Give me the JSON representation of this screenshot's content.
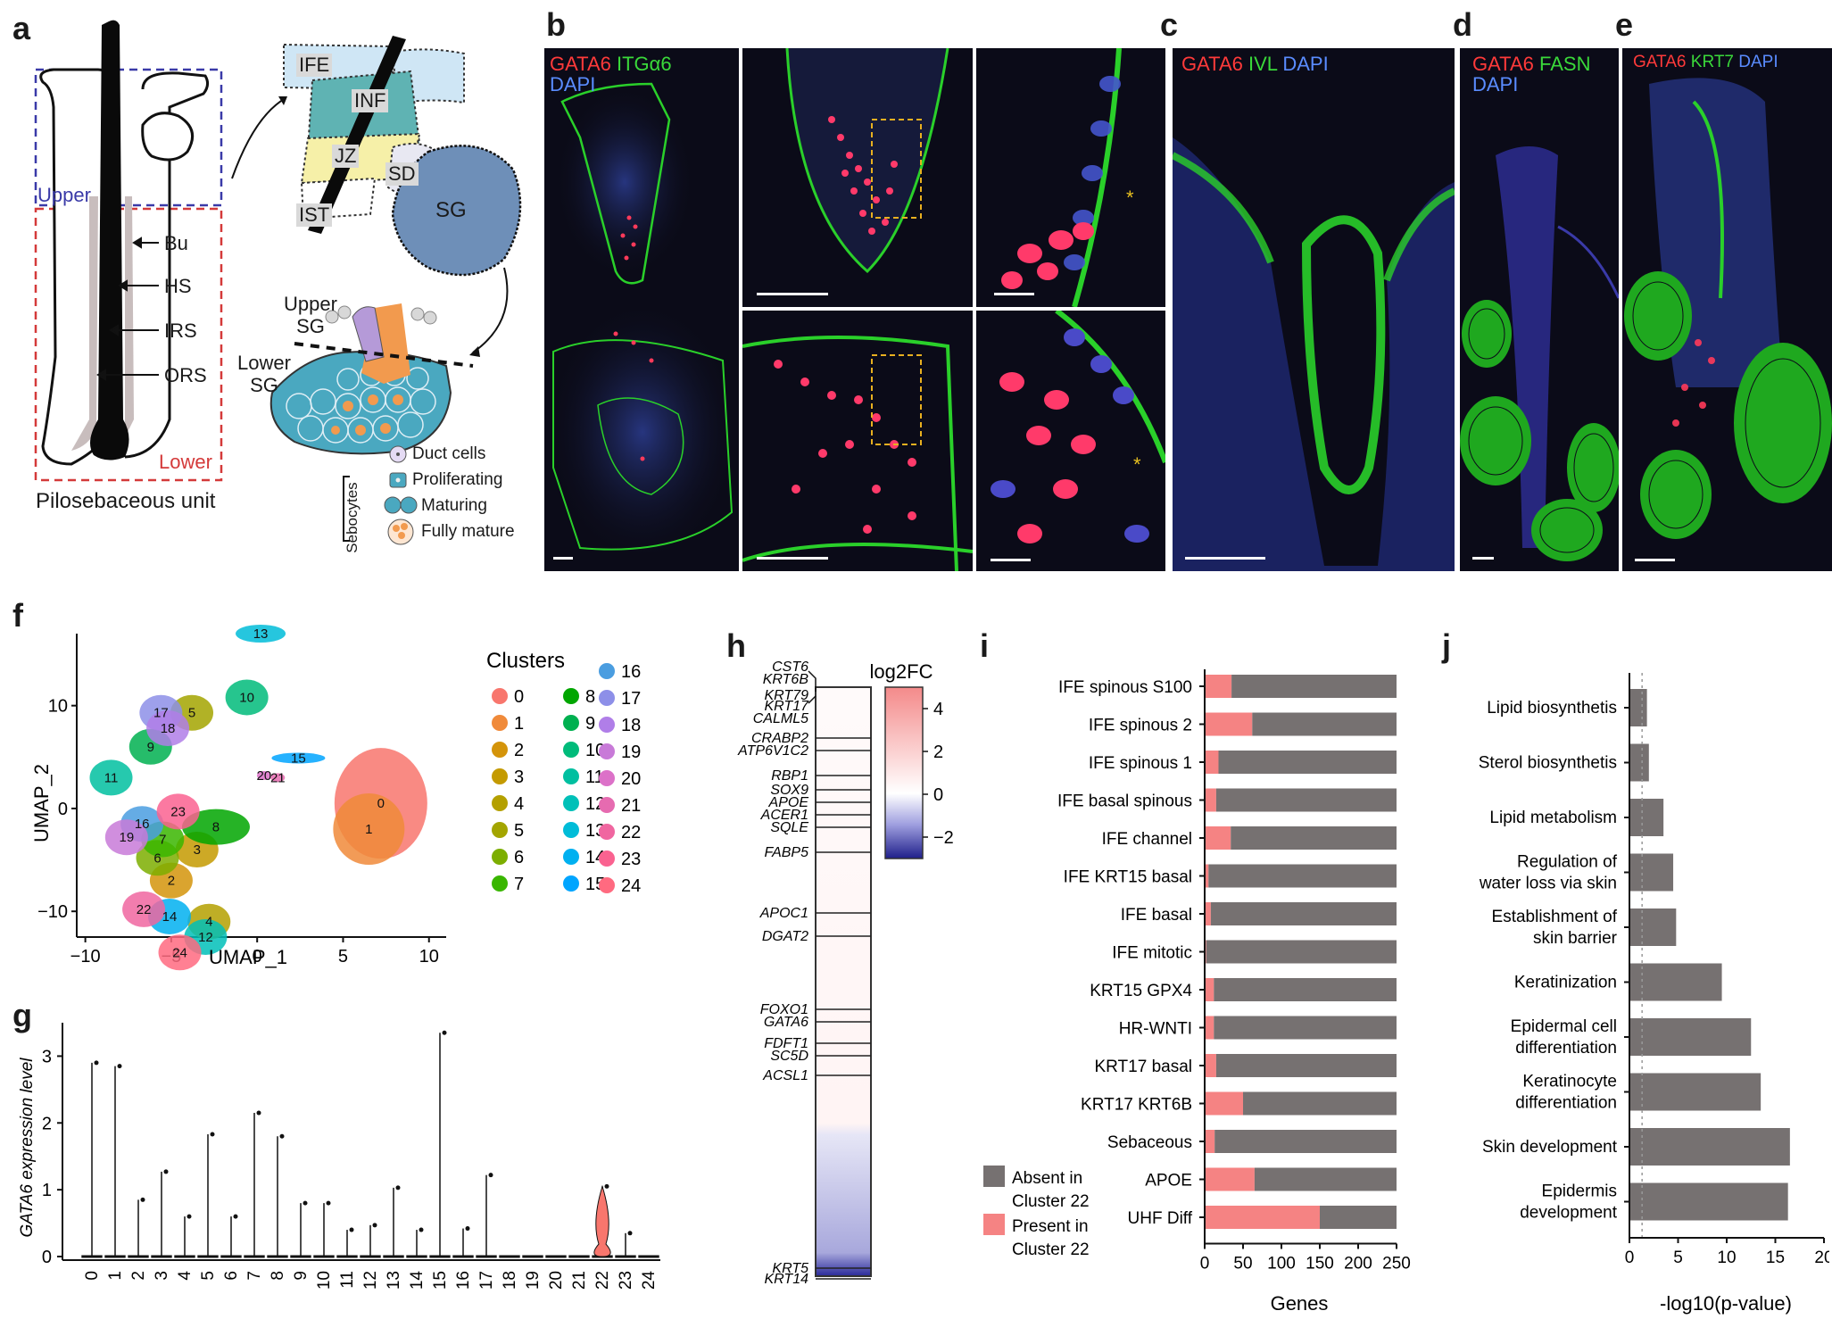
{
  "panel_labels": {
    "a": "a",
    "b": "b",
    "c": "c",
    "d": "d",
    "e": "e",
    "f": "f",
    "g": "g",
    "h": "h",
    "i": "i",
    "j": "j"
  },
  "panel_a": {
    "caption": "Pilosebaceous unit",
    "upper": "Upper",
    "lower": "Lower",
    "hf_labels": [
      "Bu",
      "HS",
      "IRS",
      "ORS"
    ],
    "zones": [
      "IFE",
      "INF",
      "JZ",
      "SD",
      "IST",
      "SG"
    ],
    "sg_upper": "Upper SG",
    "sg_lower": "Lower SG",
    "legend_title": "Sebocytes",
    "legend_items": [
      "Duct cells",
      "Proliferating",
      "Maturing",
      "Fully mature"
    ],
    "colors": {
      "ife": "#cfe6f5",
      "inf": "#5fb3b3",
      "jz": "#f6f0a8",
      "sg": "#6e8fb8",
      "upper_box": "#3a3aa8",
      "lower_box": "#d43a3a",
      "orange": "#f29a4e",
      "purple": "#b59ad8",
      "teal": "#4aa8c0"
    }
  },
  "panel_b": {
    "channels": [
      {
        "text": "GATA6",
        "color": "#ff3a3a"
      },
      {
        "text": "ITGα6",
        "color": "#3ad93a"
      },
      {
        "text": "DAPI",
        "color": "#5a8cff"
      }
    ]
  },
  "panel_c": {
    "channels": [
      {
        "text": "GATA6",
        "color": "#ff3a3a"
      },
      {
        "text": "IVL",
        "color": "#3ad93a"
      },
      {
        "text": "DAPI",
        "color": "#5a8cff"
      }
    ]
  },
  "panel_d": {
    "channels": [
      {
        "text": "GATA6",
        "color": "#ff3a3a"
      },
      {
        "text": "FASN",
        "color": "#3ad93a"
      },
      {
        "text": "DAPI",
        "color": "#5a8cff"
      }
    ]
  },
  "panel_e": {
    "channels": [
      {
        "text": "GATA6",
        "color": "#ff3a3a"
      },
      {
        "text": "KRT7",
        "color": "#3ad93a"
      },
      {
        "text": "DAPI",
        "color": "#5a8cff"
      }
    ]
  },
  "chart_data": [
    {
      "panel": "f",
      "type": "scatter",
      "xlabel": "UMAP_1",
      "ylabel": "UMAP_2",
      "xlim": [
        -10.5,
        11
      ],
      "ylim": [
        -12.5,
        17
      ],
      "xticks": [
        -10,
        -5,
        0,
        5,
        10
      ],
      "yticks": [
        -10,
        0,
        10
      ],
      "legend_title": "Clusters",
      "clusters": [
        {
          "id": "0",
          "color": "#f8766d",
          "center": [
            7.2,
            0.5
          ]
        },
        {
          "id": "1",
          "color": "#f08a3a",
          "center": [
            6.5,
            -2
          ]
        },
        {
          "id": "2",
          "color": "#d4940a",
          "center": [
            -5,
            -7
          ]
        },
        {
          "id": "3",
          "color": "#c49a00",
          "center": [
            -3.5,
            -4
          ]
        },
        {
          "id": "4",
          "color": "#b4a000",
          "center": [
            -2.8,
            -11
          ]
        },
        {
          "id": "5",
          "color": "#a3a500",
          "center": [
            -3.8,
            9.3
          ]
        },
        {
          "id": "6",
          "color": "#7cae00",
          "center": [
            -5.8,
            -4.8
          ]
        },
        {
          "id": "7",
          "color": "#39b600",
          "center": [
            -5.5,
            -3
          ]
        },
        {
          "id": "8",
          "color": "#00a600",
          "center": [
            -2.4,
            -1.8
          ]
        },
        {
          "id": "9",
          "color": "#00b050",
          "center": [
            -6.2,
            6
          ]
        },
        {
          "id": "10",
          "color": "#00bb7a",
          "center": [
            -0.6,
            10.8
          ]
        },
        {
          "id": "11",
          "color": "#00bfa0",
          "center": [
            -8.5,
            3
          ]
        },
        {
          "id": "12",
          "color": "#00c0b8",
          "center": [
            -3,
            -12.5
          ]
        },
        {
          "id": "13",
          "color": "#00bcd8",
          "center": [
            0.2,
            17
          ]
        },
        {
          "id": "14",
          "color": "#00b0f0",
          "center": [
            -5.1,
            -10.5
          ]
        },
        {
          "id": "15",
          "color": "#00a5ff",
          "center": [
            2.4,
            4.9
          ]
        },
        {
          "id": "16",
          "color": "#4a9de0",
          "center": [
            -6.7,
            -1.5
          ]
        },
        {
          "id": "17",
          "color": "#8d8fe8",
          "center": [
            -5.6,
            9.3
          ]
        },
        {
          "id": "18",
          "color": "#b07ee8",
          "center": [
            -5.2,
            7.8
          ]
        },
        {
          "id": "19",
          "color": "#c87ad8",
          "center": [
            -7.6,
            -2.8
          ]
        },
        {
          "id": "20",
          "color": "#dc71c8",
          "center": [
            0.4,
            3.2
          ]
        },
        {
          "id": "21",
          "color": "#e66bb0",
          "center": [
            1.2,
            3
          ]
        },
        {
          "id": "22",
          "color": "#f066a0",
          "center": [
            -6.6,
            -9.8
          ]
        },
        {
          "id": "23",
          "color": "#fa6290",
          "center": [
            -4.6,
            -0.3
          ]
        },
        {
          "id": "24",
          "color": "#ff6a80",
          "center": [
            -4.5,
            -14
          ]
        }
      ]
    },
    {
      "panel": "g",
      "type": "violin",
      "ylabel": "GATA6 expression level",
      "ylim": [
        0,
        3.5
      ],
      "yticks": [
        0,
        1,
        2,
        3
      ],
      "categories": [
        "0",
        "1",
        "2",
        "3",
        "4",
        "5",
        "6",
        "7",
        "8",
        "9",
        "10",
        "11",
        "12",
        "13",
        "14",
        "15",
        "16",
        "17",
        "18",
        "19",
        "20",
        "21",
        "22",
        "23",
        "24"
      ],
      "max_values": [
        2.9,
        2.85,
        0.85,
        1.27,
        0.6,
        1.83,
        0.6,
        2.15,
        1.8,
        0.8,
        0.8,
        0.4,
        0.47,
        1.03,
        0.4,
        3.35,
        0.42,
        1.22,
        0,
        0,
        0,
        0,
        1.05,
        0.35,
        0
      ],
      "highlight": {
        "category": "22",
        "color": "#f8766d"
      }
    },
    {
      "panel": "h",
      "type": "heatmap",
      "colorbar_title": "log2FC",
      "colorbar_ticks": [
        4,
        2,
        0,
        -2
      ],
      "colorbar_range": [
        -3,
        5
      ],
      "genes": [
        "CST6",
        "KRT6B",
        "KRT79",
        "KRT17",
        "CALML5",
        "CRABP2",
        "ATP6V1C2",
        "RBP1",
        "SOX9",
        "APOE",
        "ACER1",
        "SQLE",
        "FABP5",
        "APOC1",
        "DGAT2",
        "FOXO1",
        "GATA6",
        "FDFT1",
        "SC5D",
        "ACSL1",
        "KRT5",
        "KRT14"
      ]
    },
    {
      "panel": "i",
      "type": "bar",
      "orientation": "horizontal",
      "stacked": true,
      "xlabel": "Genes",
      "xlim": [
        0,
        250
      ],
      "xticks": [
        0,
        50,
        100,
        150,
        200,
        250
      ],
      "categories": [
        "IFE spinous S100",
        "IFE spinous 2",
        "IFE spinous 1",
        "IFE basal spinous",
        "IFE channel",
        "IFE KRT15 basal",
        "IFE basal",
        "IFE mitotic",
        "KRT15 GPX4",
        "HR-WNTI",
        "KRT17 basal",
        "KRT17 KRT6B",
        "Sebaceous",
        "APOE",
        "UHF Diff"
      ],
      "series": [
        {
          "name": "Present in Cluster 22",
          "color": "#f58383",
          "values": [
            35,
            62,
            18,
            15,
            34,
            5,
            8,
            2,
            12,
            12,
            15,
            50,
            13,
            65,
            150
          ]
        },
        {
          "name": "Absent in Cluster 22",
          "color": "#767171",
          "values": [
            215,
            188,
            232,
            235,
            216,
            245,
            242,
            248,
            238,
            238,
            235,
            200,
            237,
            185,
            100
          ]
        }
      ]
    },
    {
      "panel": "j",
      "type": "bar",
      "orientation": "horizontal",
      "xlabel": "-log10(p-value)",
      "xlim": [
        0,
        20
      ],
      "xticks": [
        0,
        5,
        10,
        15,
        20
      ],
      "threshold": 1.3,
      "categories": [
        "Lipid biosynthetis",
        "Sterol biosynthetis",
        "Lipid metabolism",
        "Regulation of water loss via skin",
        "Establishment of skin barrier",
        "Keratinization",
        "Epidermal cell differentiation",
        "Keratinocyte differentiation",
        "Skin development",
        "Epidermis development"
      ],
      "values": [
        1.8,
        2.0,
        3.5,
        4.5,
        4.8,
        9.5,
        12.5,
        13.5,
        16.5,
        16.3
      ]
    }
  ]
}
